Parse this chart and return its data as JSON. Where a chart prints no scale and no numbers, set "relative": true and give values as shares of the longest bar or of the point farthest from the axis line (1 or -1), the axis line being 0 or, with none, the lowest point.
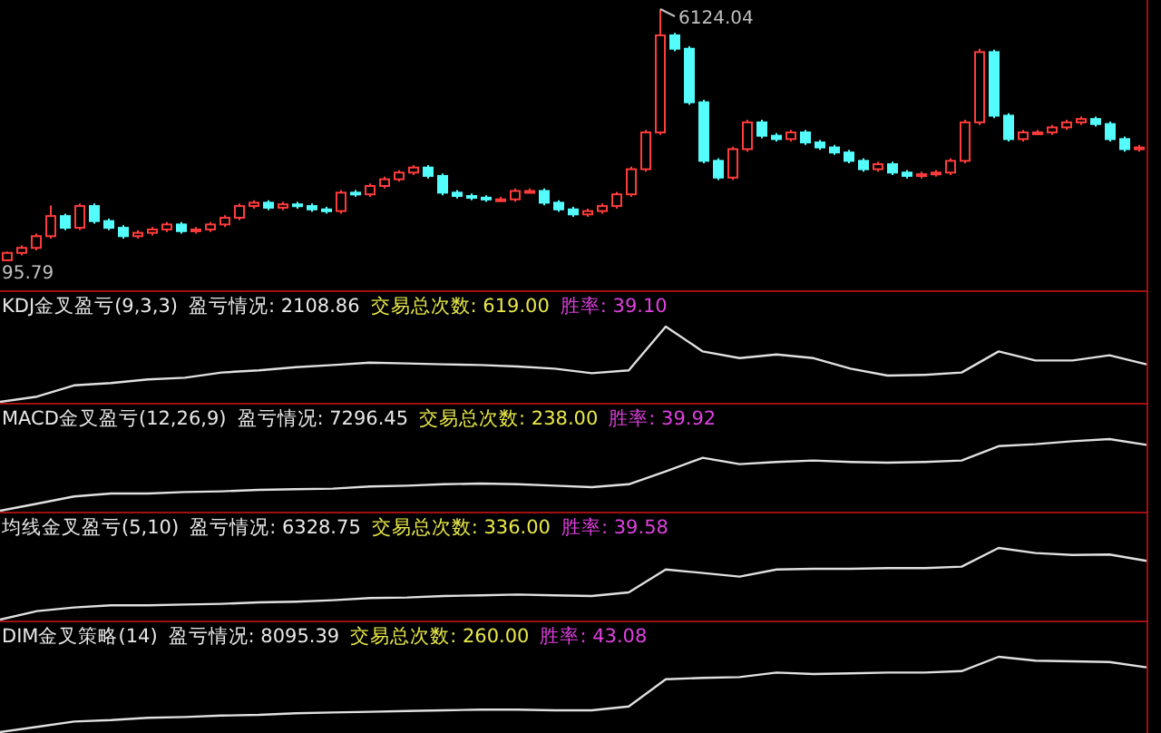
{
  "chart_data": [
    {
      "type": "candlestick",
      "categories": [
        null,
        null,
        null,
        null,
        null,
        null,
        null,
        null,
        null,
        null,
        null,
        null,
        null,
        null,
        null,
        null,
        null,
        null,
        null,
        null,
        null,
        null,
        null,
        null,
        null,
        null,
        null,
        null,
        null,
        null,
        null,
        null,
        null,
        null,
        null,
        null,
        null,
        null,
        null,
        null,
        null,
        null,
        null,
        null,
        null,
        null,
        null,
        null,
        null,
        null,
        null,
        null,
        null,
        null,
        null,
        null,
        null,
        null,
        null,
        null,
        null,
        null,
        null,
        null,
        null,
        null,
        null,
        null,
        null,
        null,
        null,
        null,
        null,
        null,
        null,
        null,
        null,
        null,
        null
      ],
      "ohlc": [
        [
          120,
          330,
          95.79,
          296
        ],
        [
          296,
          476,
          236,
          416
        ],
        [
          416,
          756,
          356,
          696
        ],
        [
          696,
          1429,
          636,
          1176
        ],
        [
          1176,
          1236,
          836,
          896
        ],
        [
          896,
          1476,
          836,
          1416
        ],
        [
          1416,
          1476,
          996,
          1056
        ],
        [
          1056,
          1116,
          836,
          896
        ],
        [
          896,
          956,
          636,
          696
        ],
        [
          696,
          836,
          636,
          776
        ],
        [
          776,
          916,
          716,
          856
        ],
        [
          856,
          1036,
          796,
          976
        ],
        [
          976,
          1036,
          756,
          816
        ],
        [
          816,
          916,
          756,
          856
        ],
        [
          856,
          1036,
          796,
          976
        ],
        [
          976,
          1196,
          916,
          1136
        ],
        [
          1136,
          1476,
          1076,
          1416
        ],
        [
          1416,
          1556,
          1356,
          1496
        ],
        [
          1496,
          1556,
          1316,
          1376
        ],
        [
          1376,
          1516,
          1316,
          1456
        ],
        [
          1456,
          1516,
          1356,
          1416
        ],
        [
          1416,
          1476,
          1276,
          1336
        ],
        [
          1336,
          1396,
          1236,
          1296
        ],
        [
          1296,
          1796,
          1236,
          1736
        ],
        [
          1736,
          1796,
          1636,
          1696
        ],
        [
          1696,
          1956,
          1636,
          1896
        ],
        [
          1896,
          2116,
          1836,
          2056
        ],
        [
          2056,
          2276,
          1996,
          2216
        ],
        [
          2216,
          2396,
          2156,
          2336
        ],
        [
          2336,
          2396,
          2076,
          2136
        ],
        [
          2136,
          2196,
          1676,
          1736
        ],
        [
          1736,
          1796,
          1596,
          1656
        ],
        [
          1656,
          1716,
          1556,
          1616
        ],
        [
          1616,
          1676,
          1516,
          1576
        ],
        [
          1576,
          1636,
          1516,
          1576
        ],
        [
          1576,
          1836,
          1516,
          1776
        ],
        [
          1776,
          1836,
          1716,
          1776
        ],
        [
          1776,
          1836,
          1436,
          1496
        ],
        [
          1496,
          1556,
          1276,
          1336
        ],
        [
          1336,
          1396,
          1156,
          1216
        ],
        [
          1216,
          1356,
          1156,
          1296
        ],
        [
          1296,
          1476,
          1236,
          1416
        ],
        [
          1416,
          1756,
          1356,
          1696
        ],
        [
          1696,
          2356,
          1636,
          2296
        ],
        [
          2296,
          3236,
          2236,
          3176
        ],
        [
          3176,
          6124.04,
          3116,
          5496
        ],
        [
          5496,
          5556,
          5116,
          5176
        ],
        [
          5176,
          5236,
          3836,
          3896
        ],
        [
          3896,
          3956,
          2436,
          2496
        ],
        [
          2496,
          2556,
          2036,
          2096
        ],
        [
          2096,
          2836,
          2036,
          2776
        ],
        [
          2776,
          3476,
          2716,
          3416
        ],
        [
          3416,
          3476,
          3036,
          3096
        ],
        [
          3096,
          3156,
          2956,
          3016
        ],
        [
          3016,
          3236,
          2956,
          3176
        ],
        [
          3176,
          3236,
          2876,
          2936
        ],
        [
          2936,
          2996,
          2756,
          2816
        ],
        [
          2816,
          2876,
          2636,
          2696
        ],
        [
          2696,
          2756,
          2436,
          2496
        ],
        [
          2496,
          2556,
          2236,
          2296
        ],
        [
          2296,
          2476,
          2236,
          2416
        ],
        [
          2416,
          2476,
          2156,
          2216
        ],
        [
          2216,
          2276,
          2076,
          2136
        ],
        [
          2136,
          2236,
          2076,
          2176
        ],
        [
          2176,
          2276,
          2116,
          2216
        ],
        [
          2216,
          2556,
          2156,
          2496
        ],
        [
          2496,
          3476,
          2436,
          3416
        ],
        [
          3416,
          5178,
          3356,
          5096
        ],
        [
          5096,
          5156,
          3516,
          3576
        ],
        [
          3576,
          3636,
          2956,
          3016
        ],
        [
          3016,
          3236,
          2956,
          3176
        ],
        [
          3176,
          3236,
          3116,
          3176
        ],
        [
          3176,
          3356,
          3116,
          3296
        ],
        [
          3296,
          3476,
          3236,
          3416
        ],
        [
          3416,
          3556,
          3356,
          3496
        ],
        [
          3496,
          3556,
          3316,
          3376
        ],
        [
          3376,
          3436,
          2956,
          3016
        ],
        [
          3016,
          3076,
          2716,
          2776
        ],
        [
          2776,
          2876,
          2716,
          2816
        ]
      ],
      "annotations": [
        "6124.04",
        "95.79"
      ]
    },
    {
      "type": "line",
      "relative": true,
      "title": "KDJ金叉盈亏(9,3,3)",
      "annotations": [
        "盈亏情况: 2108.86",
        "交易总次数: 619.00",
        "胜率: 39.10"
      ],
      "categories": [
        null,
        null,
        null,
        null,
        null,
        null,
        null,
        null,
        null,
        null,
        null,
        null,
        null,
        null,
        null,
        null,
        null,
        null,
        null,
        null,
        null,
        null,
        null,
        null,
        null,
        null,
        null,
        null,
        null,
        null,
        null,
        null
      ],
      "series": [
        {
          "color": "#e0e0e0",
          "values": [
            0,
            0.07,
            0.22,
            0.25,
            0.3,
            0.32,
            0.39,
            0.42,
            0.46,
            0.49,
            0.52,
            0.51,
            0.5,
            0.49,
            0.47,
            0.44,
            0.38,
            0.42,
            1,
            0.67,
            0.58,
            0.63,
            0.58,
            0.44,
            0.35,
            0.36,
            0.39,
            0.67,
            0.55,
            0.55,
            0.62,
            0.5
          ]
        }
      ]
    },
    {
      "type": "line",
      "relative": true,
      "title": "MACD金叉盈亏(12,26,9)",
      "annotations": [
        "盈亏情况: 7296.45",
        "交易总次数: 238.00",
        "胜率: 39.92"
      ],
      "categories": [
        null,
        null,
        null,
        null,
        null,
        null,
        null,
        null,
        null,
        null,
        null,
        null,
        null,
        null,
        null,
        null,
        null,
        null,
        null,
        null,
        null,
        null,
        null,
        null,
        null,
        null,
        null,
        null,
        null,
        null,
        null,
        null
      ],
      "series": [
        {
          "color": "#e0e0e0",
          "values": [
            0,
            0.1,
            0.2,
            0.24,
            0.24,
            0.26,
            0.27,
            0.29,
            0.3,
            0.31,
            0.34,
            0.35,
            0.37,
            0.38,
            0.37,
            0.35,
            0.33,
            0.37,
            0.55,
            0.74,
            0.65,
            0.68,
            0.7,
            0.68,
            0.67,
            0.68,
            0.7,
            0.9,
            0.93,
            0.97,
            1,
            0.92
          ]
        }
      ]
    },
    {
      "type": "line",
      "relative": true,
      "title": "均线金叉盈亏(5,10)",
      "annotations": [
        "盈亏情况: 6328.75",
        "交易总次数: 336.00",
        "胜率: 39.58"
      ],
      "categories": [
        null,
        null,
        null,
        null,
        null,
        null,
        null,
        null,
        null,
        null,
        null,
        null,
        null,
        null,
        null,
        null,
        null,
        null,
        null,
        null,
        null,
        null,
        null,
        null,
        null,
        null,
        null,
        null,
        null,
        null,
        null,
        null
      ],
      "series": [
        {
          "color": "#e0e0e0",
          "values": [
            0,
            0.12,
            0.17,
            0.2,
            0.2,
            0.21,
            0.22,
            0.24,
            0.25,
            0.27,
            0.3,
            0.31,
            0.33,
            0.34,
            0.35,
            0.34,
            0.33,
            0.38,
            0.7,
            0.65,
            0.6,
            0.7,
            0.71,
            0.71,
            0.72,
            0.72,
            0.74,
            1,
            0.93,
            0.9,
            0.91,
            0.82
          ]
        }
      ]
    },
    {
      "type": "line",
      "relative": true,
      "title": "DIM金叉策略(14)",
      "annotations": [
        "盈亏情况: 8095.39",
        "交易总次数: 260.00",
        "胜率: 43.08"
      ],
      "categories": [
        null,
        null,
        null,
        null,
        null,
        null,
        null,
        null,
        null,
        null,
        null,
        null,
        null,
        null,
        null,
        null,
        null,
        null,
        null,
        null,
        null,
        null,
        null,
        null,
        null,
        null,
        null,
        null,
        null,
        null,
        null,
        null
      ],
      "series": [
        {
          "color": "#e0e0e0",
          "values": [
            0,
            0.07,
            0.14,
            0.16,
            0.19,
            0.2,
            0.22,
            0.23,
            0.25,
            0.26,
            0.27,
            0.28,
            0.29,
            0.3,
            0.3,
            0.29,
            0.29,
            0.34,
            0.7,
            0.72,
            0.73,
            0.79,
            0.77,
            0.78,
            0.79,
            0.79,
            0.81,
            1,
            0.95,
            0.94,
            0.93,
            0.86
          ]
        }
      ]
    }
  ]
}
